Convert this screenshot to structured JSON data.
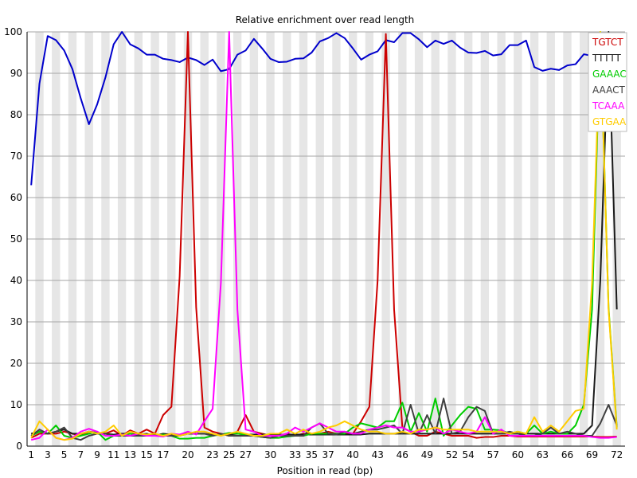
{
  "chart_data": {
    "type": "line",
    "title": "Relative enrichment over read length",
    "xlabel": "Position in read (bp)",
    "ylabel": "",
    "ylim": [
      0,
      100
    ],
    "yticks": [
      0,
      10,
      20,
      30,
      40,
      50,
      60,
      70,
      80,
      90,
      100
    ],
    "x": [
      1,
      2,
      3,
      4,
      5,
      6,
      7,
      8,
      9,
      10,
      11,
      12,
      13,
      14,
      15,
      16,
      17,
      18,
      19,
      20,
      21,
      22,
      23,
      24,
      25,
      26,
      27,
      28,
      29,
      30,
      31,
      32,
      33,
      34,
      35,
      36,
      37,
      38,
      39,
      40,
      41,
      42,
      43,
      44,
      45,
      46,
      47,
      48,
      49,
      50,
      51,
      52,
      53,
      54,
      55,
      56,
      57,
      58,
      59,
      60,
      61,
      62,
      63,
      64,
      65,
      66,
      67,
      68,
      69,
      70,
      71,
      72
    ],
    "xtick_labels": [
      "1",
      "3",
      "5",
      "7",
      "9",
      "11",
      "13",
      "15",
      "17",
      "20",
      "23",
      "25",
      "27",
      "30",
      "33",
      "35",
      "37",
      "40",
      "43",
      "46",
      "49",
      "52",
      "54",
      "57",
      "60",
      "63",
      "66",
      "69",
      "72"
    ],
    "xtick_positions": [
      1,
      3,
      5,
      7,
      9,
      11,
      13,
      15,
      17,
      20,
      23,
      25,
      27,
      30,
      33,
      35,
      37,
      40,
      43,
      46,
      49,
      52,
      54,
      57,
      60,
      63,
      66,
      69,
      72
    ],
    "grid": "horizontal",
    "legend_position": "top-right",
    "series": [
      {
        "name": "",
        "color": "#0000cc",
        "values": [
          63,
          87.5,
          99,
          98,
          95.5,
          91,
          84,
          77.7,
          82.5,
          89,
          97,
          100,
          97,
          96,
          94.5,
          94.5,
          93.5,
          93.2,
          92.7,
          93.8,
          93.2,
          92,
          93.3,
          90.5,
          91,
          94.5,
          95.5,
          98.3,
          96,
          93.5,
          92.7,
          92.8,
          93.5,
          93.6,
          95,
          97.7,
          98.5,
          99.7,
          98.5,
          96,
          93.3,
          94.5,
          95.3,
          98,
          97.5,
          99.7,
          99.7,
          98.2,
          96.3,
          97.9,
          97.1,
          97.9,
          96.2,
          95,
          94.9,
          95.4,
          94.3,
          94.6,
          96.8,
          96.8,
          97.9,
          91.5,
          90.6,
          91.1,
          90.8,
          91.9,
          92.2,
          94.6,
          94.2,
          91.1,
          88.3,
          89.6
        ]
      },
      {
        "name": "TGTCT",
        "color": "#cc0000",
        "values": [
          2,
          3,
          3,
          3,
          3.5,
          3,
          2.5,
          3.5,
          3.2,
          3,
          3.8,
          2.5,
          3.8,
          3,
          4,
          3,
          7.5,
          9.5,
          41,
          100,
          33.5,
          4.5,
          3.5,
          3,
          2.5,
          3.5,
          7.5,
          3.5,
          3,
          2.5,
          2.5,
          3,
          2.5,
          3,
          3,
          3,
          3.5,
          3,
          3,
          3,
          6,
          9.5,
          40,
          99.5,
          33,
          4.5,
          3.5,
          2.5,
          2.5,
          3.5,
          3,
          2.5,
          2.5,
          2.5,
          2,
          2.2,
          2.2,
          2.5,
          2.5,
          2.3,
          2.3,
          2.3,
          2.3,
          2.3,
          2.3,
          2.3,
          2.3,
          2.3,
          2.3,
          2.2,
          2.2,
          2.3
        ]
      },
      {
        "name": "TTTTT",
        "color": "#1a1a1a",
        "values": [
          3,
          3.5,
          3,
          3.5,
          4,
          3,
          3,
          3.5,
          3,
          3,
          2.8,
          3,
          3,
          2.8,
          3,
          2.5,
          3,
          2.8,
          2.8,
          3,
          3,
          3,
          2.8,
          2.8,
          2.8,
          3,
          2.8,
          2.8,
          2.8,
          2.8,
          2.8,
          2.8,
          2.8,
          2.8,
          2.8,
          2.8,
          2.8,
          2.8,
          2.8,
          2.8,
          2.8,
          3,
          3,
          3,
          3,
          3,
          3,
          3,
          3,
          3,
          3,
          3,
          3,
          3,
          3,
          3,
          3,
          3,
          3,
          3,
          3,
          3,
          3,
          3,
          3,
          3,
          3,
          3,
          5,
          40,
          100,
          33
        ]
      },
      {
        "name": "GAAAC",
        "color": "#00cc00",
        "values": [
          2.5,
          3.5,
          3,
          5,
          2.5,
          2,
          2.5,
          3,
          3.5,
          1.5,
          2.5,
          2.5,
          3,
          2.5,
          2.5,
          2.5,
          2.8,
          2.5,
          1.8,
          1.8,
          2,
          2,
          2.5,
          2.8,
          3.2,
          3,
          2.8,
          2.5,
          2.2,
          2,
          2,
          2.3,
          2.5,
          2.5,
          3,
          3,
          3,
          3,
          3,
          4.5,
          5.5,
          5,
          4.5,
          6,
          6,
          10.5,
          3.5,
          8,
          3.5,
          11.5,
          2.5,
          5,
          7.5,
          9.5,
          9,
          4,
          4,
          3.8,
          3,
          3.5,
          3,
          5,
          3,
          3.5,
          3,
          3,
          5,
          10,
          33,
          100,
          33.5,
          4.5
        ]
      },
      {
        "name": "AAACT",
        "color": "#404040",
        "values": [
          2.5,
          4,
          3,
          3.5,
          4.5,
          2,
          1.5,
          2.5,
          3,
          3,
          2.5,
          2.5,
          2.5,
          2.5,
          2.5,
          2.8,
          2.5,
          2.5,
          2.5,
          3,
          3,
          3,
          2.5,
          3,
          2.5,
          2.5,
          2.5,
          2.5,
          2.2,
          2,
          2.5,
          2.5,
          2.5,
          2.5,
          4.5,
          5.5,
          3,
          2.8,
          3.5,
          3,
          3.5,
          4,
          4,
          4.5,
          5,
          3,
          10,
          3,
          7.5,
          3,
          11.5,
          3,
          3.5,
          7,
          9.5,
          8.5,
          3,
          3,
          3.5,
          3,
          2.5,
          2.5,
          3,
          4.5,
          3,
          3.5,
          3,
          2.5,
          2.5,
          5.5,
          10,
          5
        ]
      },
      {
        "name": "TCAAA",
        "color": "#ff00ff",
        "values": [
          1.5,
          2,
          4,
          2,
          1.5,
          2,
          3.5,
          4.2,
          3.5,
          2.5,
          2.5,
          2.8,
          2.5,
          3,
          2.5,
          2.5,
          2.3,
          3,
          2.8,
          3.5,
          2.8,
          6,
          9,
          39.5,
          100,
          33,
          4,
          3.5,
          2.5,
          2.5,
          2.5,
          3,
          4.5,
          3.5,
          4.5,
          5.5,
          4.5,
          3.5,
          3.5,
          3,
          3,
          4,
          4.5,
          5,
          4.5,
          4.5,
          3.5,
          3.5,
          4,
          4.5,
          3,
          4,
          3.5,
          3,
          3.5,
          7,
          3,
          4,
          2.5,
          2.5,
          2.5,
          2.5,
          2.5,
          2.5,
          2.5,
          2.5,
          2.5,
          2.5,
          2.2,
          2,
          2,
          2.2
        ]
      },
      {
        "name": "GTGAA",
        "color": "#ffcc00",
        "values": [
          2,
          6,
          4,
          2,
          1.5,
          1.8,
          3,
          3.5,
          3,
          3.5,
          5,
          2.5,
          3.5,
          3,
          2.8,
          3,
          2.5,
          3,
          2.5,
          3,
          3.5,
          3.5,
          3,
          2.5,
          3,
          3.5,
          3,
          2.5,
          2.5,
          3,
          3,
          4,
          3,
          4,
          3,
          3.5,
          4.5,
          5,
          6,
          5,
          4,
          3.5,
          3.5,
          3,
          3,
          3.5,
          3,
          4,
          4,
          4.5,
          4,
          4,
          4,
          4,
          3.5,
          3.5,
          3.5,
          3.5,
          3,
          3.5,
          3,
          7,
          3.5,
          5,
          3.5,
          6,
          8.5,
          9,
          39.5,
          100,
          33,
          4
        ]
      }
    ]
  }
}
